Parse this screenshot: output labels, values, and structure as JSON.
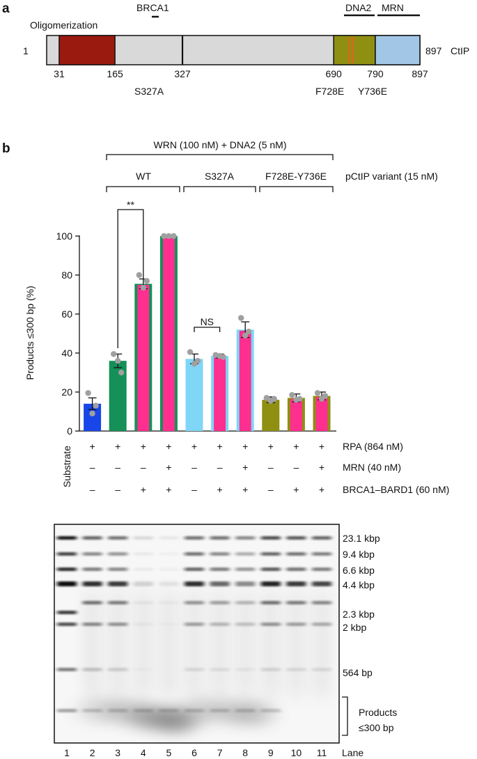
{
  "panel_a": {
    "letter": "a",
    "protein": "CtIP",
    "start_num": "1",
    "end_num": "897",
    "domain_labels": {
      "oligomerization": "Oligomerization",
      "brca1": "BRCA1",
      "dna2": "DNA2",
      "mrn": "MRN"
    },
    "positions": [
      {
        "value": 31,
        "label": "31"
      },
      {
        "value": 165,
        "label": "165"
      },
      {
        "value": 327,
        "label": "327"
      },
      {
        "value": 690,
        "label": "690"
      },
      {
        "value": 790,
        "label": "790"
      },
      {
        "value": 897,
        "label": "897"
      }
    ],
    "mutations": {
      "s327a": "S327A",
      "f728e": "F728E",
      "y736e": "Y736E"
    },
    "colors": {
      "backbone": "#d9d9d9",
      "oligomerization": "#9b1a10",
      "dna2": "#8f8f12",
      "mrn": "#a2c6e6",
      "mutation": "#e0641c"
    }
  },
  "panel_b": {
    "letter": "b",
    "header": {
      "wrn_dna2": "WRN (100 nM) + DNA2 (5 nM)",
      "variant_label": "pCtIP variant (15 nM)",
      "groups": [
        "WT",
        "S327A",
        "F728E-Y736E"
      ]
    },
    "chart_data": {
      "type": "bar",
      "ylabel": "Products ≤300 bp (%)",
      "ylim": [
        0,
        100
      ],
      "yticks": [
        "0",
        "20",
        "40",
        "60",
        "80",
        "100"
      ],
      "lanes": [
        2,
        3,
        4,
        5,
        6,
        7,
        8,
        9,
        10,
        11
      ],
      "values": [
        14,
        36,
        75.5,
        100,
        37,
        38.5,
        52,
        16,
        17,
        18
      ],
      "errors": [
        3,
        3.5,
        2.5,
        0,
        2.5,
        1,
        4,
        1.5,
        2,
        2
      ],
      "points": [
        [
          19.5,
          9,
          13
        ],
        [
          39.5,
          36,
          30
        ],
        [
          80,
          73.5,
          77
        ],
        [
          100,
          100,
          100
        ],
        [
          40.5,
          34.5,
          36
        ],
        [
          39,
          38.5,
          38
        ],
        [
          58,
          49,
          51
        ],
        [
          17,
          15.5,
          16.5
        ],
        [
          18.5,
          16,
          16.5
        ],
        [
          19.5,
          16.5,
          18
        ]
      ],
      "bar_colors": [
        "#1946e8",
        "#149058",
        "#ff2f8f",
        "#ff2f8f",
        "#7fd6f7",
        "#ff2f8f",
        "#ff2f8f",
        "#8f8f12",
        "#ff2f8f",
        "#ff2f8f"
      ],
      "outline_colors": [
        "#1946e8",
        "#149058",
        "#149058",
        "#149058",
        "#7fd6f7",
        "#7fd6f7",
        "#7fd6f7",
        "#8f8f12",
        "#8f8f12",
        "#8f8f12"
      ],
      "significance": [
        {
          "lanes": [
            3,
            4
          ],
          "label": "**"
        },
        {
          "lanes": [
            6,
            7
          ],
          "label": "NS"
        }
      ]
    },
    "conditions": [
      {
        "label": "RPA (864 nM)",
        "signs": [
          "+",
          "+",
          "+",
          "+",
          "+",
          "+",
          "+",
          "+",
          "+",
          "+"
        ]
      },
      {
        "label": "MRN (40 nM)",
        "signs": [
          "–",
          "–",
          "–",
          "+",
          "–",
          "–",
          "+",
          "–",
          "–",
          "+"
        ]
      },
      {
        "label": "BRCA1–BARD1 (60 nM)",
        "signs": [
          "–",
          "–",
          "+",
          "+",
          "–",
          "+",
          "+",
          "–",
          "+",
          "+"
        ]
      }
    ],
    "substrate_label": "Substrate",
    "gel": {
      "markers": [
        "23.1 kbp",
        "9.4 kbp",
        "6.6 kbp",
        "4.4 kbp",
        "2.3 kbp",
        "2 kbp",
        "564 bp"
      ],
      "products_label": [
        "Products",
        "≤300 bp"
      ],
      "lane_numbers": [
        "1",
        "2",
        "3",
        "4",
        "5",
        "6",
        "7",
        "8",
        "9",
        "10",
        "11"
      ],
      "lane_word": "Lane"
    }
  }
}
